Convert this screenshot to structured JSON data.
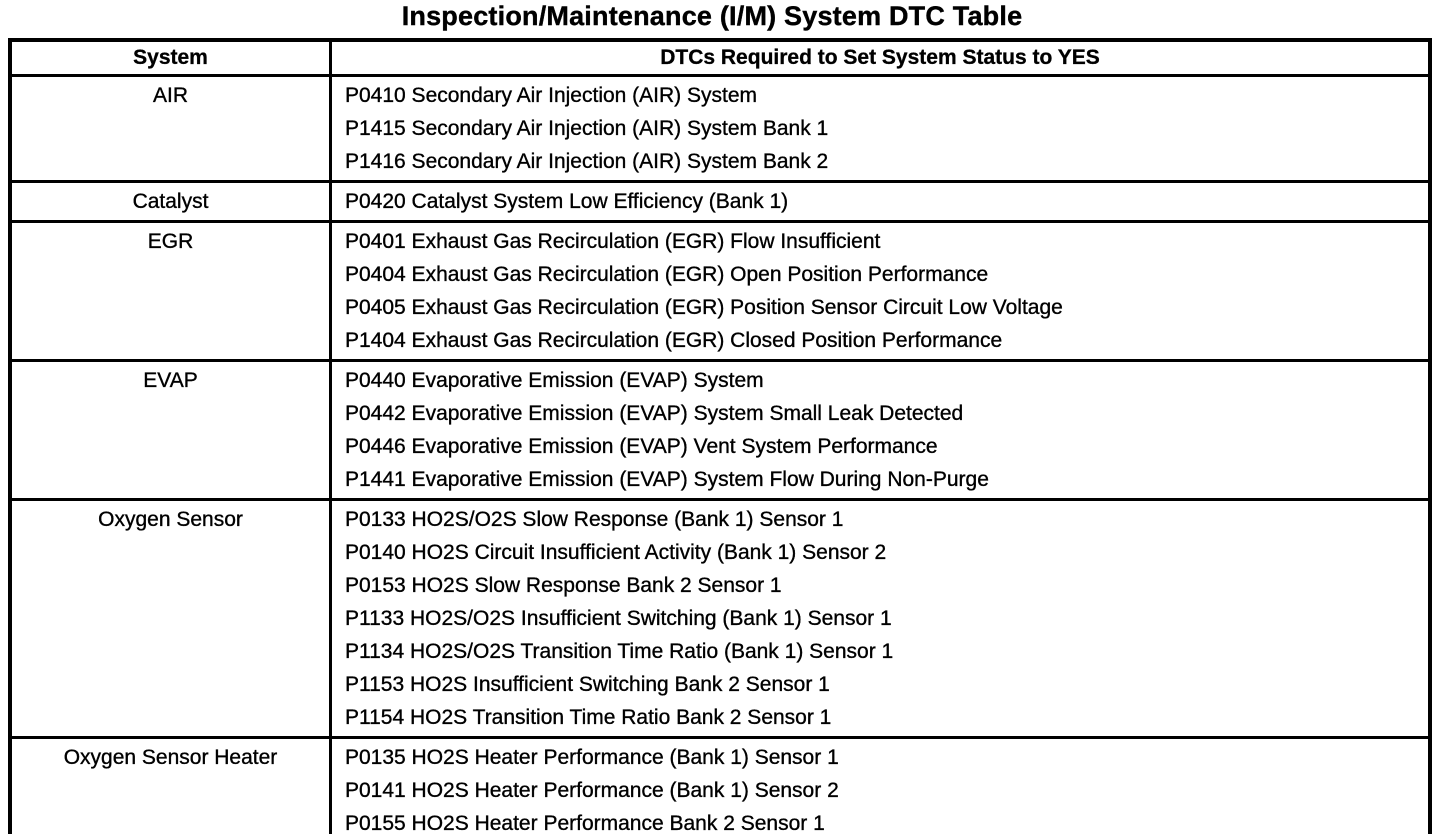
{
  "title": "Inspection/Maintenance (I/M) System DTC Table",
  "colors": {
    "ink": "#000000",
    "paper": "#ffffff"
  },
  "table": {
    "headers": {
      "system": "System",
      "dtcs": "DTCs Required to Set System Status to YES"
    },
    "rows": [
      {
        "system": "AIR",
        "dtcs": [
          "P0410 Secondary Air Injection (AIR) System",
          "P1415 Secondary Air Injection (AIR) System Bank 1",
          "P1416 Secondary Air Injection (AIR) System Bank 2"
        ]
      },
      {
        "system": "Catalyst",
        "dtcs": [
          "P0420 Catalyst System Low Efficiency (Bank 1)"
        ]
      },
      {
        "system": "EGR",
        "dtcs": [
          "P0401 Exhaust Gas Recirculation (EGR) Flow Insufficient",
          "P0404 Exhaust Gas Recirculation (EGR) Open Position Performance",
          "P0405 Exhaust Gas Recirculation (EGR) Position Sensor Circuit Low Voltage",
          "P1404 Exhaust Gas Recirculation (EGR) Closed Position Performance"
        ]
      },
      {
        "system": "EVAP",
        "dtcs": [
          "P0440 Evaporative Emission (EVAP) System",
          "P0442 Evaporative Emission (EVAP) System Small Leak Detected",
          "P0446 Evaporative Emission (EVAP) Vent System Performance",
          "P1441 Evaporative Emission (EVAP) System Flow During Non-Purge"
        ]
      },
      {
        "system": "Oxygen Sensor",
        "dtcs": [
          "P0133 HO2S/O2S Slow Response (Bank 1) Sensor 1",
          "P0140 HO2S Circuit Insufficient Activity (Bank 1) Sensor 2",
          "P0153 HO2S Slow Response Bank 2 Sensor 1",
          "P1133 HO2S/O2S Insufficient Switching (Bank 1) Sensor 1",
          "P1134 HO2S/O2S Transition Time Ratio (Bank 1) Sensor 1",
          "P1153 HO2S Insufficient Switching Bank 2 Sensor 1",
          "P1154 HO2S Transition Time Ratio Bank 2 Sensor 1"
        ]
      },
      {
        "system": "Oxygen Sensor Heater",
        "dtcs": [
          "P0135 HO2S Heater Performance (Bank 1) Sensor 1",
          "P0141 HO2S Heater Performance (Bank 1) Sensor 2",
          "P0155 HO2S Heater Performance Bank 2 Sensor 1"
        ]
      }
    ]
  }
}
